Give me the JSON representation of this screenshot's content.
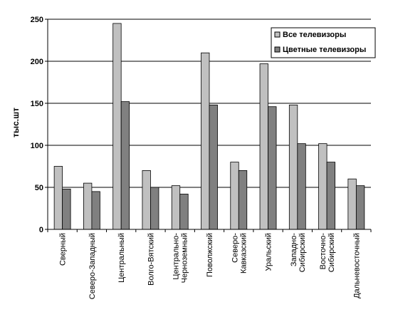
{
  "chart_data": {
    "type": "bar",
    "ylabel": "тыс.шт",
    "ylim": [
      0,
      250
    ],
    "yticks": [
      0,
      50,
      100,
      150,
      200,
      250
    ],
    "grid": true,
    "legend_position": "top-right",
    "categories": [
      [
        "Сверный"
      ],
      [
        "Северо-Западный"
      ],
      [
        "Центральный"
      ],
      [
        "Волго-Вятский"
      ],
      [
        "Центрально-",
        "Черноземный"
      ],
      [
        "Поволжский"
      ],
      [
        "Северо-",
        "Кавказский"
      ],
      [
        "Уральский"
      ],
      [
        "Западно-",
        "Сибирский"
      ],
      [
        "Восточно-",
        "Сибирский"
      ],
      [
        "Дальневосточный"
      ]
    ],
    "series": [
      {
        "name": "Все телевизоры",
        "color": "#c0c0c0",
        "values": [
          75,
          55,
          245,
          70,
          52,
          210,
          80,
          197,
          148,
          102,
          60
        ]
      },
      {
        "name": "Цветные телевизоры",
        "color": "#808080",
        "values": [
          48,
          45,
          152,
          50,
          42,
          148,
          70,
          146,
          102,
          80,
          52
        ]
      }
    ]
  }
}
